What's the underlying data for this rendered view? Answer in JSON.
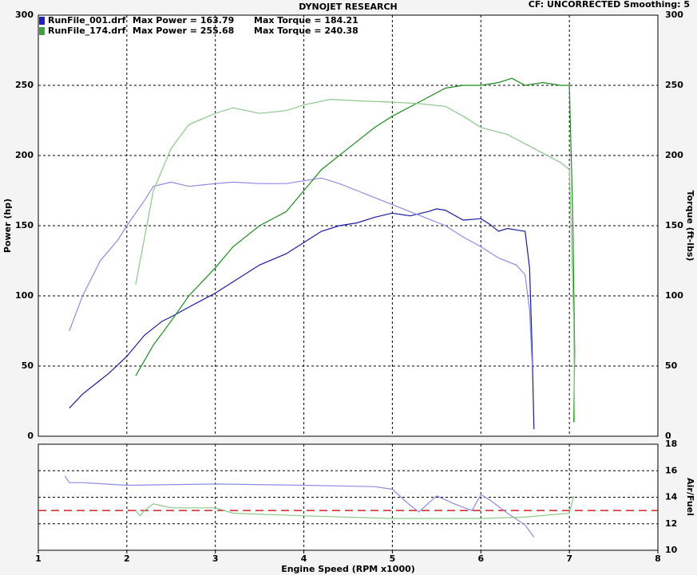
{
  "chart_data": [
    {
      "type": "line",
      "title": "DYNOJET RESEARCH",
      "subtitle": "CF: UNCORRECTED  Smoothing: 5",
      "ylabel": "Power (hp)",
      "y2label": "Torque (ft-lbs)",
      "legend": [
        {
          "color": "#2020c0",
          "file": "RunFile_001.drf",
          "power": "Max Power = 163.79",
          "torque": "Max Torque = 184.21"
        },
        {
          "color": "#40a040",
          "file": "RunFile_174.drf",
          "power": "Max Power = 255.68",
          "torque": "Max Torque = 240.38"
        }
      ],
      "xlim": [
        1,
        8
      ],
      "xticks": [
        1,
        2,
        3,
        4,
        5,
        6,
        7,
        8
      ],
      "ylim": [
        0,
        300
      ],
      "yticks": [
        0,
        50,
        100,
        150,
        200,
        250,
        300
      ],
      "y2lim": [
        0,
        300
      ],
      "y2ticks": [
        0,
        50,
        100,
        150,
        200,
        250,
        300
      ],
      "grid": true,
      "series": [
        {
          "color": "#1a1aa0",
          "axis": "y",
          "x": [
            1.35,
            1.5,
            1.8,
            2.0,
            2.2,
            2.4,
            2.5,
            2.7,
            3.0,
            3.2,
            3.5,
            3.8,
            4.0,
            4.2,
            4.4,
            4.6,
            4.8,
            5.0,
            5.2,
            5.4,
            5.5,
            5.6,
            5.8,
            6.0,
            6.1,
            6.2,
            6.3,
            6.4,
            6.5,
            6.55,
            6.58,
            6.6
          ],
          "values": [
            20,
            30,
            45,
            57,
            72,
            82,
            85,
            92,
            102,
            110,
            122,
            130,
            138,
            146,
            150,
            152,
            156,
            159,
            157,
            160,
            162,
            161,
            154,
            155,
            151,
            146,
            148,
            147,
            146,
            120,
            60,
            5
          ]
        },
        {
          "color": "#8c8ce6",
          "axis": "y2",
          "x": [
            1.35,
            1.5,
            1.7,
            1.9,
            2.0,
            2.2,
            2.3,
            2.5,
            2.7,
            3.0,
            3.2,
            3.5,
            3.8,
            4.0,
            4.2,
            4.4,
            4.6,
            4.8,
            5.0,
            5.2,
            5.4,
            5.6,
            5.8,
            6.0,
            6.2,
            6.4,
            6.5,
            6.55,
            6.58
          ],
          "values": [
            75,
            100,
            125,
            140,
            150,
            168,
            178,
            181,
            178,
            180,
            181,
            180,
            180,
            182,
            184,
            180,
            175,
            170,
            165,
            160,
            155,
            150,
            142,
            135,
            127,
            122,
            115,
            90,
            50
          ]
        },
        {
          "color": "#1e8c1e",
          "axis": "y",
          "x": [
            2.1,
            2.3,
            2.5,
            2.7,
            3.0,
            3.2,
            3.5,
            3.8,
            4.0,
            4.2,
            4.5,
            4.8,
            5.0,
            5.3,
            5.6,
            5.8,
            6.0,
            6.2,
            6.35,
            6.5,
            6.7,
            6.9,
            7.0,
            7.02,
            7.04,
            7.06,
            7.05
          ],
          "values": [
            43,
            65,
            82,
            100,
            120,
            135,
            150,
            160,
            175,
            190,
            205,
            220,
            228,
            238,
            248,
            250,
            250,
            252,
            255,
            250,
            252,
            250,
            250,
            200,
            150,
            60,
            10
          ]
        },
        {
          "color": "#8cc88c",
          "axis": "y2",
          "x": [
            2.1,
            2.3,
            2.5,
            2.7,
            3.0,
            3.2,
            3.5,
            3.8,
            4.0,
            4.3,
            4.6,
            5.0,
            5.3,
            5.6,
            5.8,
            6.0,
            6.3,
            6.6,
            6.9,
            7.0,
            7.02,
            7.05,
            7.06
          ],
          "values": [
            108,
            175,
            205,
            222,
            230,
            234,
            230,
            232,
            236,
            240,
            239,
            238,
            237,
            235,
            228,
            220,
            215,
            205,
            195,
            190,
            150,
            80,
            10
          ]
        }
      ]
    },
    {
      "type": "line",
      "xlabel": "Engine Speed (RPM x1000)",
      "y2label": "Air/Fuel",
      "xlim": [
        1,
        8
      ],
      "xticks": [
        1,
        2,
        3,
        4,
        5,
        6,
        7,
        8
      ],
      "y2lim": [
        10,
        18
      ],
      "y2ticks": [
        10,
        12,
        14,
        16,
        18
      ],
      "grid": true,
      "reference_line": {
        "value": 13,
        "color": "#d02020"
      },
      "series": [
        {
          "color": "#8c8ce6",
          "axis": "y2",
          "x": [
            1.3,
            1.35,
            1.5,
            2.0,
            3.0,
            4.0,
            4.8,
            5.0,
            5.2,
            5.3,
            5.5,
            5.7,
            5.9,
            6.0,
            6.1,
            6.3,
            6.5,
            6.6
          ],
          "values": [
            15.6,
            15.1,
            15.1,
            14.9,
            15.0,
            14.9,
            14.8,
            14.6,
            13.4,
            12.9,
            14.1,
            13.5,
            13.0,
            14.2,
            13.8,
            12.8,
            11.9,
            11.0
          ]
        },
        {
          "color": "#8cc88c",
          "axis": "y2",
          "x": [
            2.1,
            2.15,
            2.2,
            2.3,
            2.5,
            3.0,
            3.2,
            4.0,
            5.0,
            6.0,
            6.5,
            7.0,
            7.05
          ],
          "values": [
            13.0,
            12.6,
            13.0,
            13.5,
            13.2,
            13.2,
            12.8,
            12.6,
            12.4,
            12.4,
            12.5,
            12.8,
            14.1
          ]
        }
      ]
    }
  ]
}
